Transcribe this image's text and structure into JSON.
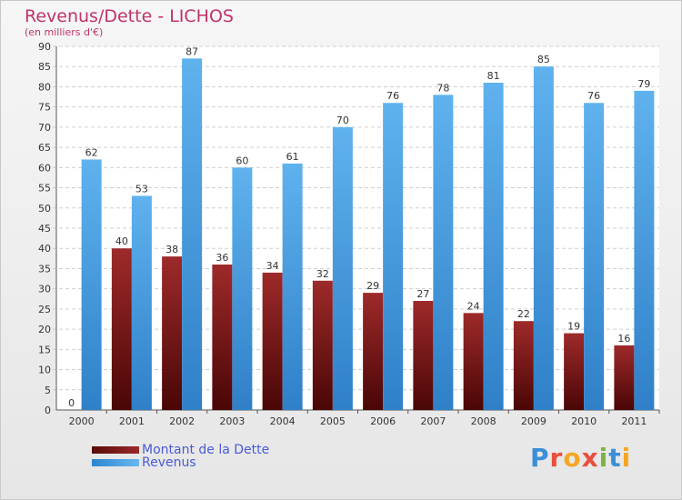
{
  "title": "Revenus/Dette - LICHOS",
  "subtitle": "(en milliers d'€)",
  "logo": {
    "letters": [
      "P",
      "r",
      "o",
      "x",
      "i",
      "t",
      "i"
    ],
    "colors": [
      "#3a8fd8",
      "#e94e3c",
      "#f5a623",
      "#e94e3c",
      "#7cb342",
      "#3a8fd8",
      "#f5a623"
    ]
  },
  "chart_data": {
    "type": "bar",
    "categories": [
      "2000",
      "2001",
      "2002",
      "2003",
      "2004",
      "2005",
      "2006",
      "2007",
      "2008",
      "2009",
      "2010",
      "2011"
    ],
    "series": [
      {
        "name": "Montant de la Dette",
        "values": [
          0,
          40,
          38,
          36,
          34,
          32,
          29,
          27,
          24,
          22,
          19,
          16
        ],
        "color": "#7a1313"
      },
      {
        "name": "Revenus",
        "values": [
          62,
          53,
          87,
          60,
          61,
          70,
          76,
          78,
          81,
          85,
          76,
          79
        ],
        "color": "#4ea8e8"
      }
    ],
    "yticks": [
      "0",
      "5",
      "10",
      "15",
      "20",
      "25",
      "30",
      "35",
      "40",
      "45",
      "50",
      "55",
      "60",
      "65",
      "70",
      "75",
      "80",
      "85",
      "90"
    ],
    "ylim": [
      0,
      90
    ],
    "grid": true,
    "legend": "bottom-left"
  }
}
